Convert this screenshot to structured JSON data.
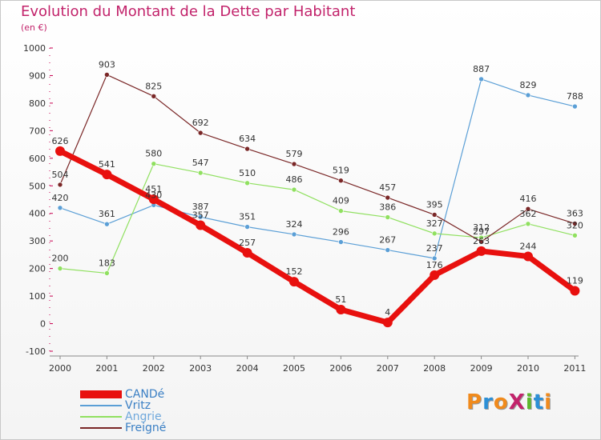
{
  "header": {
    "title": "Evolution du Montant de la Dette par Habitant",
    "unit": "(en €)"
  },
  "logo": {
    "text": "ProXiti",
    "colors": [
      "#f08a1c",
      "#2c8fd6",
      "#f08a1c",
      "#c2236b",
      "#5cb82c",
      "#2c8fd6",
      "#f08a1c"
    ]
  },
  "chart_data": {
    "type": "line",
    "title": "Evolution du Montant de la Dette par Habitant",
    "subtitle": "(en €)",
    "categories": [
      "2000",
      "2001",
      "2002",
      "2003",
      "2004",
      "2005",
      "2006",
      "2007",
      "2008",
      "2009",
      "2010",
      "2011"
    ],
    "ylim": [
      -100,
      1000
    ],
    "yticks": [
      -100,
      0,
      100,
      200,
      300,
      400,
      500,
      600,
      700,
      800,
      900,
      1000
    ],
    "grid": false,
    "legend_position": "bottom-left",
    "series": [
      {
        "name": "CANDé",
        "color": "#e8100e",
        "width": 7,
        "marker": 6,
        "values": [
          626,
          541,
          451,
          357,
          257,
          152,
          51,
          4,
          176,
          263,
          244,
          119
        ]
      },
      {
        "name": "Vritz",
        "color": "#5b9fd6",
        "width": 1.2,
        "marker": 3,
        "values": [
          420,
          361,
          430,
          387,
          351,
          324,
          296,
          267,
          237,
          887,
          829,
          788
        ]
      },
      {
        "name": "Angrie",
        "color": "#90e060",
        "width": 1.2,
        "marker": 3,
        "values": [
          200,
          183,
          580,
          547,
          510,
          486,
          409,
          386,
          327,
          312,
          362,
          320
        ]
      },
      {
        "name": "Freigné",
        "color": "#7a2727",
        "width": 1.2,
        "marker": 3,
        "values": [
          504,
          903,
          825,
          692,
          634,
          579,
          519,
          457,
          395,
          297,
          416,
          363
        ]
      }
    ]
  }
}
